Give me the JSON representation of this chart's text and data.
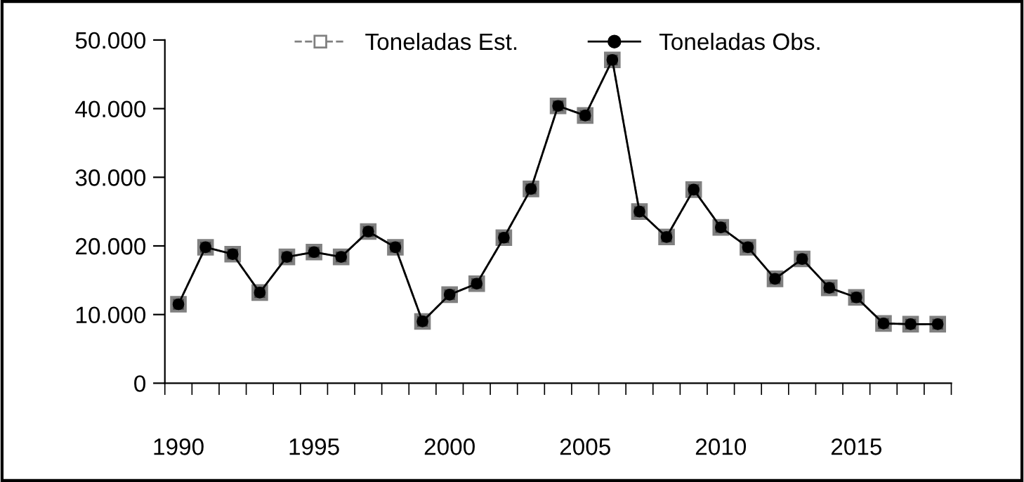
{
  "chart_data": {
    "type": "line",
    "categories": [
      "1990",
      null,
      null,
      null,
      null,
      "1995",
      null,
      null,
      null,
      null,
      "2000",
      null,
      null,
      null,
      null,
      "2005",
      null,
      null,
      null,
      null,
      "2010",
      null,
      null,
      null,
      null,
      "2015",
      null,
      null,
      null
    ],
    "series": [
      {
        "name": "Toneladas Est.",
        "color": "#808080",
        "marker": "square",
        "line_style": "dashed",
        "values": [
          11500,
          19800,
          18800,
          13200,
          18400,
          19100,
          18400,
          22100,
          19800,
          9000,
          12900,
          14500,
          21200,
          28300,
          40400,
          39000,
          47100,
          25000,
          21300,
          28200,
          22700,
          19800,
          15200,
          18100,
          13900,
          12500,
          8700,
          8600,
          8600
        ]
      },
      {
        "name": "Toneladas Obs.",
        "color": "#000000",
        "marker": "circle",
        "line_style": "solid",
        "values": [
          11500,
          19800,
          18800,
          13200,
          18400,
          19100,
          18400,
          22100,
          19800,
          9000,
          12900,
          14500,
          21200,
          28300,
          40400,
          39000,
          47100,
          25000,
          21300,
          28200,
          22700,
          19800,
          15200,
          18100,
          13900,
          12500,
          8700,
          8600,
          8600
        ]
      }
    ],
    "ylim": [
      0,
      50000
    ],
    "yticks": [
      {
        "value": 0,
        "label": "0"
      },
      {
        "value": 10000,
        "label": "10.000"
      },
      {
        "value": 20000,
        "label": "20.000"
      },
      {
        "value": 30000,
        "label": "30.000"
      },
      {
        "value": 40000,
        "label": "40.000"
      },
      {
        "value": 50000,
        "label": "50.000"
      }
    ],
    "grid": false,
    "legend": "top"
  }
}
